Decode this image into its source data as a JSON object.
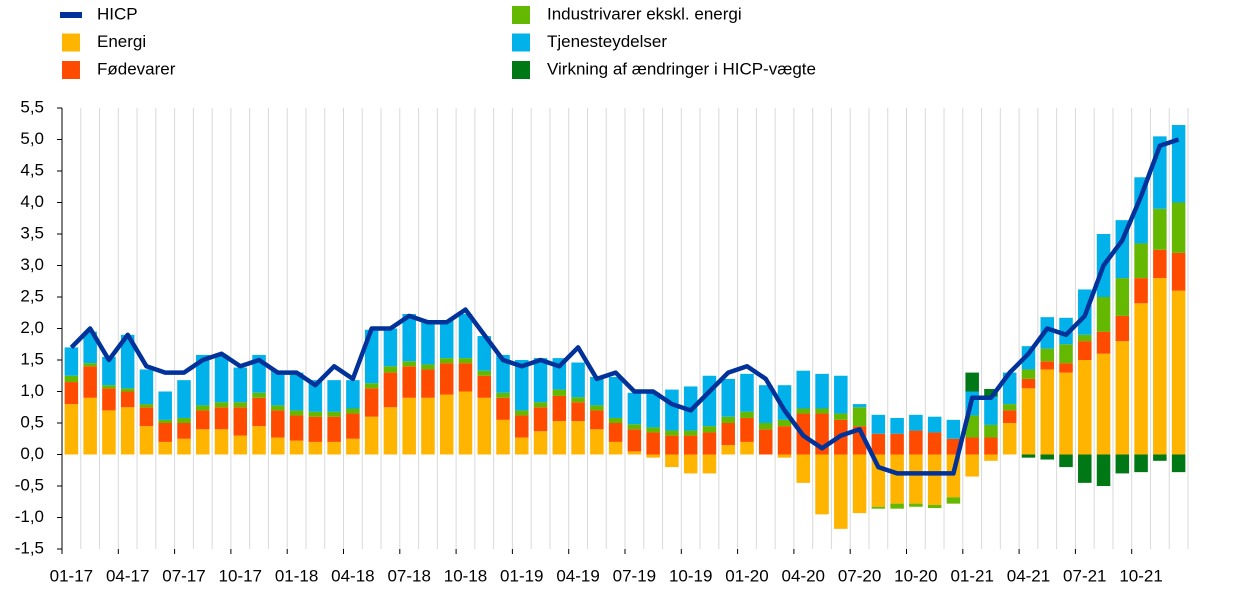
{
  "chart_data": {
    "type": "bar-line",
    "categories": [
      "01-17",
      null,
      null,
      "04-17",
      null,
      null,
      "07-17",
      null,
      null,
      "10-17",
      null,
      null,
      "01-18",
      null,
      null,
      "04-18",
      null,
      null,
      "07-18",
      null,
      null,
      "10-18",
      null,
      null,
      "01-19",
      null,
      null,
      "04-19",
      null,
      null,
      "07-19",
      null,
      null,
      "10-19",
      null,
      null,
      "01-20",
      null,
      null,
      "04-20",
      null,
      null,
      "07-20",
      null,
      null,
      "10-20",
      null,
      null,
      "01-21",
      null,
      null,
      "04-21",
      null,
      null,
      "07-21",
      null,
      null,
      "10-21",
      null,
      null
    ],
    "series": [
      {
        "name": "HICP",
        "type": "line",
        "color": "#003299",
        "values": [
          1.7,
          2.0,
          1.5,
          1.9,
          1.4,
          1.3,
          1.3,
          1.5,
          1.6,
          1.4,
          1.5,
          1.3,
          1.3,
          1.1,
          1.4,
          1.2,
          2.0,
          2.0,
          2.2,
          2.1,
          2.1,
          2.3,
          1.9,
          1.5,
          1.4,
          1.5,
          1.4,
          1.7,
          1.2,
          1.3,
          1.0,
          1.0,
          0.8,
          0.7,
          1.0,
          1.3,
          1.4,
          1.2,
          0.7,
          0.3,
          0.1,
          0.3,
          0.4,
          -0.2,
          -0.3,
          -0.3,
          -0.3,
          -0.3,
          0.9,
          0.9,
          1.3,
          1.6,
          2.0,
          1.9,
          2.2,
          3.0,
          3.4,
          4.1,
          4.9,
          5.0
        ]
      },
      {
        "name": "Energi",
        "type": "bar",
        "color": "#ffb400",
        "values": [
          0.8,
          0.9,
          0.7,
          0.75,
          0.45,
          0.2,
          0.25,
          0.4,
          0.4,
          0.3,
          0.45,
          0.27,
          0.22,
          0.2,
          0.2,
          0.25,
          0.6,
          0.75,
          0.9,
          0.9,
          0.95,
          1.0,
          0.9,
          0.55,
          0.27,
          0.37,
          0.53,
          0.53,
          0.4,
          0.2,
          0.05,
          -0.05,
          -0.2,
          -0.3,
          -0.3,
          0.15,
          0.2,
          0.0,
          -0.05,
          -0.45,
          -0.95,
          -1.18,
          -0.93,
          -0.83,
          -0.78,
          -0.78,
          -0.8,
          -0.68,
          -0.35,
          -0.1,
          0.5,
          1.05,
          1.35,
          1.3,
          1.5,
          1.6,
          1.8,
          2.4,
          2.8,
          2.6
        ]
      },
      {
        "name": "Fødevarer",
        "type": "bar",
        "color": "#ff4b00",
        "values": [
          0.35,
          0.5,
          0.35,
          0.25,
          0.3,
          0.3,
          0.25,
          0.3,
          0.35,
          0.45,
          0.45,
          0.43,
          0.4,
          0.4,
          0.4,
          0.4,
          0.45,
          0.55,
          0.5,
          0.45,
          0.5,
          0.45,
          0.35,
          0.35,
          0.35,
          0.38,
          0.4,
          0.3,
          0.3,
          0.3,
          0.35,
          0.35,
          0.3,
          0.3,
          0.35,
          0.35,
          0.38,
          0.4,
          0.45,
          0.65,
          0.65,
          0.55,
          0.45,
          0.33,
          0.33,
          0.38,
          0.35,
          0.25,
          0.27,
          0.27,
          0.2,
          0.15,
          0.13,
          0.15,
          0.3,
          0.35,
          0.4,
          0.4,
          0.45,
          0.6
        ]
      },
      {
        "name": "Industrivarer ekskl. energi",
        "type": "bar",
        "color": "#65b800",
        "values": [
          0.1,
          0.05,
          0.05,
          0.05,
          0.05,
          0.05,
          0.08,
          0.08,
          0.08,
          0.08,
          0.08,
          0.08,
          0.08,
          0.08,
          0.08,
          0.08,
          0.08,
          0.1,
          0.08,
          0.08,
          0.08,
          0.08,
          0.08,
          0.08,
          0.08,
          0.08,
          0.1,
          0.08,
          0.08,
          0.08,
          0.08,
          0.08,
          0.08,
          0.08,
          0.1,
          0.1,
          0.1,
          0.1,
          0.1,
          0.08,
          0.08,
          0.1,
          0.3,
          -0.03,
          -0.08,
          -0.05,
          -0.05,
          -0.1,
          0.35,
          0.2,
          0.1,
          0.15,
          0.2,
          0.3,
          0.1,
          0.55,
          0.6,
          0.55,
          0.65,
          0.8
        ]
      },
      {
        "name": "Tjenesteydelser",
        "type": "bar",
        "color": "#00b1ea",
        "values": [
          0.45,
          0.5,
          0.45,
          0.85,
          0.55,
          0.45,
          0.6,
          0.8,
          0.75,
          0.55,
          0.6,
          0.55,
          0.6,
          0.5,
          0.5,
          0.45,
          0.85,
          0.6,
          0.75,
          0.7,
          0.6,
          0.7,
          0.55,
          0.6,
          0.8,
          0.7,
          0.5,
          0.55,
          0.45,
          0.65,
          0.5,
          0.55,
          0.65,
          0.7,
          0.8,
          0.6,
          0.6,
          0.6,
          0.55,
          0.6,
          0.55,
          0.6,
          0.05,
          0.3,
          0.25,
          0.25,
          0.25,
          0.3,
          0.38,
          0.45,
          0.5,
          0.37,
          0.5,
          0.42,
          0.72,
          1.0,
          0.92,
          1.05,
          1.15,
          1.23
        ]
      },
      {
        "name": "Virkning af ændringer i HICP-vægte",
        "type": "bar",
        "color": "#007816",
        "values": [
          0,
          0,
          0,
          0,
          0,
          0,
          0,
          0,
          0,
          0,
          0,
          0,
          0,
          0,
          0,
          0,
          0,
          0,
          0,
          0,
          0,
          0,
          0,
          0,
          0,
          0,
          0,
          0,
          0,
          0,
          0,
          0,
          0,
          0,
          0,
          0,
          0,
          0,
          0,
          0,
          0,
          0,
          0,
          0,
          0,
          0,
          0,
          0,
          0.3,
          0.12,
          0,
          -0.05,
          -0.08,
          -0.2,
          -0.45,
          -0.5,
          -0.3,
          -0.28,
          -0.1,
          -0.28
        ]
      }
    ],
    "ylim": [
      -1.5,
      5.5
    ],
    "yticks": [
      {
        "value": -1.5,
        "label": "-1,5"
      },
      {
        "value": -1.0,
        "label": "-1,0"
      },
      {
        "value": -0.5,
        "label": "-0,5"
      },
      {
        "value": 0,
        "label": "0,0"
      },
      {
        "value": 0.5,
        "label": "0,5"
      },
      {
        "value": 1.0,
        "label": "1,0"
      },
      {
        "value": 1.5,
        "label": "1,5"
      },
      {
        "value": 2.0,
        "label": "2,0"
      },
      {
        "value": 2.5,
        "label": "2,5"
      },
      {
        "value": 3.0,
        "label": "3,0"
      },
      {
        "value": 3.5,
        "label": "3,5"
      },
      {
        "value": 4.0,
        "label": "4,0"
      },
      {
        "value": 4.5,
        "label": "4,5"
      },
      {
        "value": 5.0,
        "label": "5,0"
      },
      {
        "value": 5.5,
        "label": "5,5"
      }
    ],
    "grid": "vertical"
  }
}
